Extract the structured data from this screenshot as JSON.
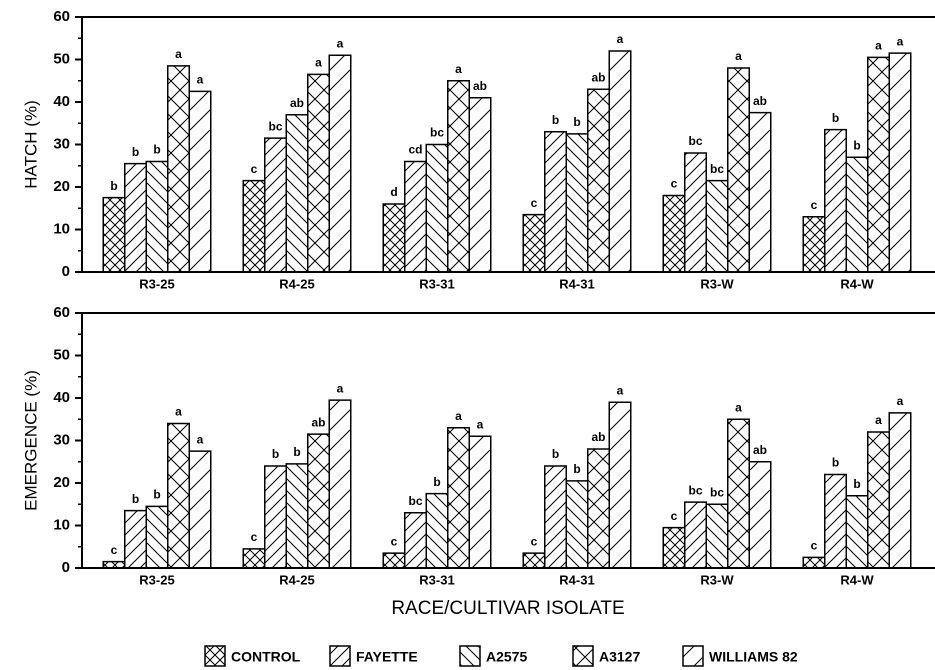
{
  "chart_data": [
    {
      "type": "bar",
      "ylabel": "HATCH (%)",
      "categories": [
        "R3-25",
        "R4-25",
        "R3-31",
        "R4-31",
        "R3-W",
        "R4-W"
      ],
      "ylim": [
        0,
        60
      ],
      "yticks": [
        0,
        10,
        20,
        30,
        40,
        50,
        60
      ],
      "series": [
        {
          "name": "CONTROL",
          "pattern": "cross",
          "values": [
            17.5,
            21.5,
            16,
            13.5,
            18,
            13
          ],
          "letters": [
            "b",
            "c",
            "d",
            "c",
            "c",
            "c"
          ]
        },
        {
          "name": "FAYETTE",
          "pattern": "fwd",
          "values": [
            25.5,
            31.5,
            26,
            33,
            28,
            33.5
          ],
          "letters": [
            "b",
            "bc",
            "cd",
            "b",
            "bc",
            "b"
          ]
        },
        {
          "name": "A2575",
          "pattern": "back",
          "values": [
            26,
            37,
            30,
            32.5,
            21.5,
            27
          ],
          "letters": [
            "b",
            "ab",
            "bc",
            "b",
            "bc",
            "b"
          ]
        },
        {
          "name": "A3127",
          "pattern": "diamond",
          "values": [
            48.5,
            46.5,
            45,
            43,
            48,
            50.5
          ],
          "letters": [
            "a",
            "a",
            "a",
            "ab",
            "a",
            "a"
          ]
        },
        {
          "name": "WILLIAMS 82",
          "pattern": "wide",
          "values": [
            42.5,
            51,
            41,
            52,
            37.5,
            51.5
          ],
          "letters": [
            "a",
            "a",
            "ab",
            "a",
            "ab",
            "a"
          ]
        }
      ]
    },
    {
      "type": "bar",
      "ylabel": "EMERGENCE (%)",
      "xlabel": "RACE/CULTIVAR ISOLATE",
      "categories": [
        "R3-25",
        "R4-25",
        "R3-31",
        "R4-31",
        "R3-W",
        "R4-W"
      ],
      "ylim": [
        0,
        60
      ],
      "yticks": [
        0,
        10,
        20,
        30,
        40,
        50,
        60
      ],
      "series": [
        {
          "pattern": "cross",
          "values": [
            1.5,
            4.5,
            3.5,
            3.5,
            9.5,
            2.5
          ],
          "letters": [
            "c",
            "c",
            "c",
            "c",
            "c",
            "c"
          ]
        },
        {
          "pattern": "fwd",
          "values": [
            13.5,
            24,
            13,
            24,
            15.5,
            22
          ],
          "letters": [
            "b",
            "b",
            "bc",
            "b",
            "bc",
            "b"
          ]
        },
        {
          "pattern": "back",
          "values": [
            14.5,
            24.5,
            17.5,
            20.5,
            15,
            17
          ],
          "letters": [
            "b",
            "b",
            "b",
            "b",
            "bc",
            "b"
          ]
        },
        {
          "pattern": "diamond",
          "values": [
            34,
            31.5,
            33,
            28,
            35,
            32
          ],
          "letters": [
            "a",
            "ab",
            "a",
            "ab",
            "a",
            "a"
          ]
        },
        {
          "pattern": "wide",
          "values": [
            27.5,
            39.5,
            31,
            39,
            25,
            36.5
          ],
          "letters": [
            "a",
            "a",
            "a",
            "a",
            "ab",
            "a"
          ]
        }
      ]
    }
  ]
}
